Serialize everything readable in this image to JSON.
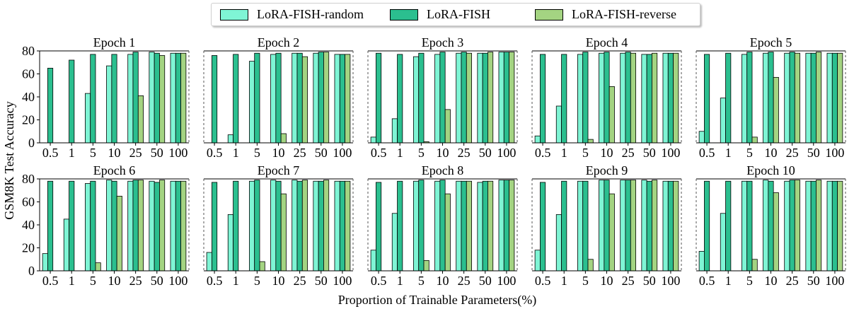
{
  "chart_data": {
    "type": "bar",
    "layout": "small-multiples 2x5",
    "ylabel": "GSM8K Test Accuracy",
    "xlabel": "Proportion of Trainable Parameters(%)",
    "categories": [
      "0.5",
      "1",
      "5",
      "10",
      "25",
      "50",
      "100"
    ],
    "ylim": [
      0,
      80
    ],
    "yticks": [
      0,
      20,
      40,
      60,
      80
    ],
    "grid": false,
    "legend_position": "top-center",
    "series_meta": [
      {
        "name": "LoRA-FISH-random",
        "color": "#7ff5d5"
      },
      {
        "name": "LoRA-FISH",
        "color": "#2bbf8f"
      },
      {
        "name": "LoRA-FISH-reverse",
        "color": "#a4d482"
      }
    ],
    "panels": [
      {
        "title": "Epoch 1",
        "series": [
          {
            "name": "LoRA-FISH-random",
            "values": [
              0,
              0,
              43,
              67,
              77,
              79,
              78
            ]
          },
          {
            "name": "LoRA-FISH",
            "values": [
              65,
              72,
              77,
              77,
              79,
              78,
              78
            ]
          },
          {
            "name": "LoRA-FISH-reverse",
            "values": [
              0,
              0,
              0,
              0,
              41,
              76,
              78
            ]
          }
        ]
      },
      {
        "title": "Epoch 2",
        "series": [
          {
            "name": "LoRA-FISH-random",
            "values": [
              0,
              7,
              71,
              77,
              78,
              78,
              77
            ]
          },
          {
            "name": "LoRA-FISH",
            "values": [
              76,
              77,
              78,
              78,
              78,
              79,
              77
            ]
          },
          {
            "name": "LoRA-FISH-reverse",
            "values": [
              0,
              0,
              0,
              8,
              75,
              79,
              77
            ]
          }
        ]
      },
      {
        "title": "Epoch 3",
        "series": [
          {
            "name": "LoRA-FISH-random",
            "values": [
              5,
              21,
              75,
              77,
              78,
              78,
              79
            ]
          },
          {
            "name": "LoRA-FISH",
            "values": [
              78,
              77,
              78,
              79,
              79,
              78,
              79
            ]
          },
          {
            "name": "LoRA-FISH-reverse",
            "values": [
              0,
              0,
              1,
              29,
              78,
              79,
              79
            ]
          }
        ]
      },
      {
        "title": "Epoch 4",
        "series": [
          {
            "name": "LoRA-FISH-random",
            "values": [
              6,
              32,
              77,
              78,
              78,
              77,
              78
            ]
          },
          {
            "name": "LoRA-FISH",
            "values": [
              77,
              77,
              79,
              79,
              79,
              77,
              78
            ]
          },
          {
            "name": "LoRA-FISH-reverse",
            "values": [
              0,
              0,
              3,
              49,
              78,
              78,
              78
            ]
          }
        ]
      },
      {
        "title": "Epoch 5",
        "series": [
          {
            "name": "LoRA-FISH-random",
            "values": [
              10,
              39,
              77,
              78,
              78,
              78,
              78
            ]
          },
          {
            "name": "LoRA-FISH",
            "values": [
              77,
              78,
              79,
              79,
              79,
              78,
              78
            ]
          },
          {
            "name": "LoRA-FISH-reverse",
            "values": [
              0,
              0,
              5,
              57,
              78,
              79,
              78
            ]
          }
        ]
      },
      {
        "title": "Epoch 6",
        "series": [
          {
            "name": "LoRA-FISH-random",
            "values": [
              15,
              45,
              76,
              79,
              78,
              78,
              78
            ]
          },
          {
            "name": "LoRA-FISH",
            "values": [
              78,
              78,
              78,
              78,
              79,
              77,
              78
            ]
          },
          {
            "name": "LoRA-FISH-reverse",
            "values": [
              0,
              0,
              7,
              65,
              79,
              79,
              78
            ]
          }
        ]
      },
      {
        "title": "Epoch 7",
        "series": [
          {
            "name": "LoRA-FISH-random",
            "values": [
              16,
              49,
              78,
              79,
              79,
              78,
              78
            ]
          },
          {
            "name": "LoRA-FISH",
            "values": [
              77,
              78,
              79,
              78,
              78,
              78,
              78
            ]
          },
          {
            "name": "LoRA-FISH-reverse",
            "values": [
              0,
              0,
              8,
              67,
              79,
              79,
              78
            ]
          }
        ]
      },
      {
        "title": "Epoch 8",
        "series": [
          {
            "name": "LoRA-FISH-random",
            "values": [
              18,
              50,
              78,
              78,
              78,
              77,
              79
            ]
          },
          {
            "name": "LoRA-FISH",
            "values": [
              77,
              78,
              79,
              79,
              78,
              78,
              79
            ]
          },
          {
            "name": "LoRA-FISH-reverse",
            "values": [
              0,
              0,
              9,
              67,
              78,
              78,
              79
            ]
          }
        ]
      },
      {
        "title": "Epoch 9",
        "series": [
          {
            "name": "LoRA-FISH-random",
            "values": [
              18,
              49,
              78,
              79,
              79,
              79,
              78
            ]
          },
          {
            "name": "LoRA-FISH",
            "values": [
              77,
              78,
              78,
              79,
              79,
              78,
              78
            ]
          },
          {
            "name": "LoRA-FISH-reverse",
            "values": [
              0,
              0,
              10,
              67,
              79,
              79,
              78
            ]
          }
        ]
      },
      {
        "title": "Epoch 10",
        "series": [
          {
            "name": "LoRA-FISH-random",
            "values": [
              17,
              50,
              78,
              79,
              78,
              78,
              78
            ]
          },
          {
            "name": "LoRA-FISH",
            "values": [
              78,
              78,
              78,
              78,
              79,
              78,
              78
            ]
          },
          {
            "name": "LoRA-FISH-reverse",
            "values": [
              0,
              0,
              10,
              68,
              79,
              79,
              78
            ]
          }
        ]
      }
    ]
  }
}
